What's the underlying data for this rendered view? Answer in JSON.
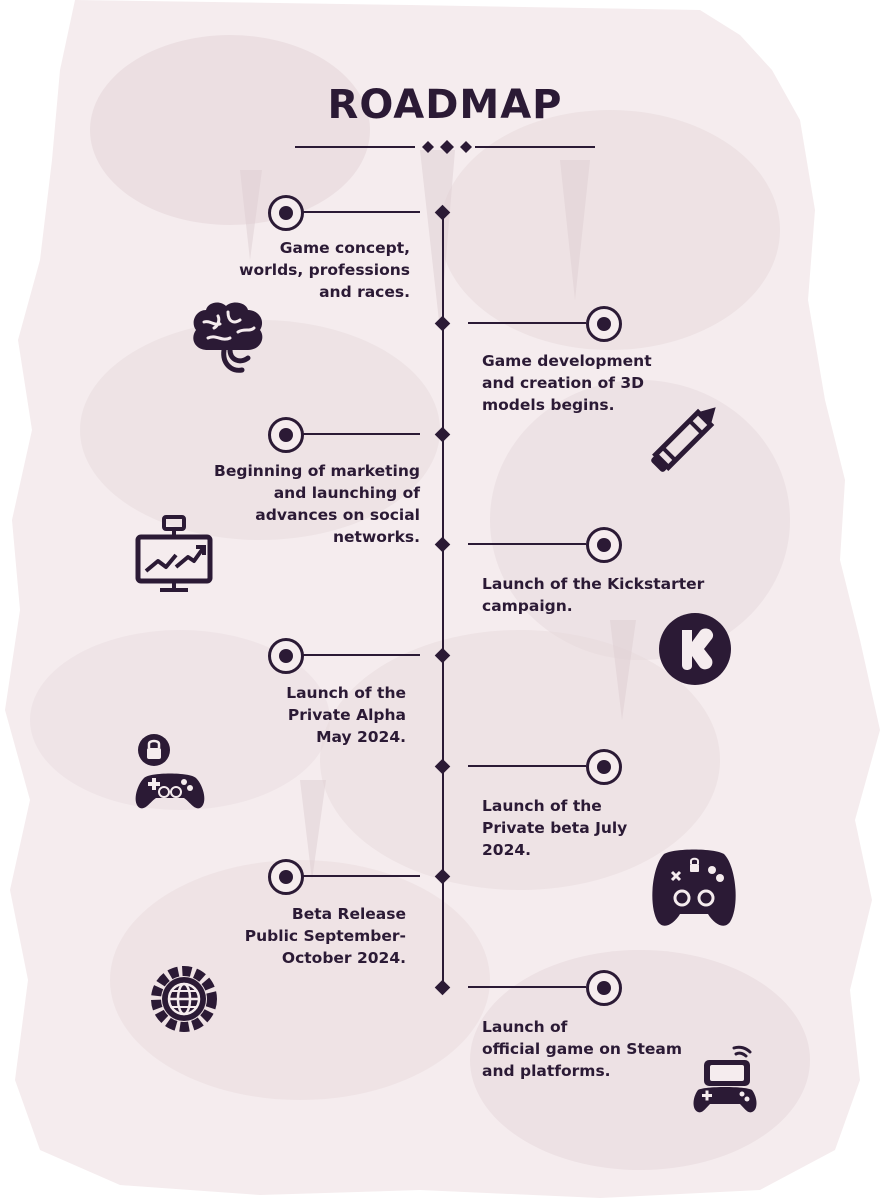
{
  "title": "ROADMAP",
  "colors": {
    "ink": "#2b1a35",
    "paper": "#f5ecee",
    "wash": "#e8dadd"
  },
  "milestones": [
    {
      "side": "left",
      "text": "Game concept,\nworlds, professions\nand races.",
      "icon": "brain-icon"
    },
    {
      "side": "right",
      "text": "Game development\nand creation of 3D\nmodels begins.",
      "icon": "pencil-icon"
    },
    {
      "side": "left",
      "text": "Beginning of marketing\nand launching of\nadvances on social\nnetworks.",
      "icon": "growth-chart-monitor-icon"
    },
    {
      "side": "right",
      "text": "Launch of the Kickstarter\ncampaign.",
      "icon": "kickstarter-logo-icon"
    },
    {
      "side": "left",
      "text": "Launch of the\nPrivate Alpha\nMay 2024.",
      "icon": "locked-gamepad-icon"
    },
    {
      "side": "right",
      "text": "Launch of the\nPrivate beta July\n2024.",
      "icon": "gamepad-icon"
    },
    {
      "side": "left",
      "text": "Beta Release\nPublic September-\nOctober 2024.",
      "icon": "globe-gear-icon"
    },
    {
      "side": "right",
      "text": "Launch of\nofficial game on Steam\nand platforms.",
      "icon": "handheld-console-icon"
    }
  ]
}
